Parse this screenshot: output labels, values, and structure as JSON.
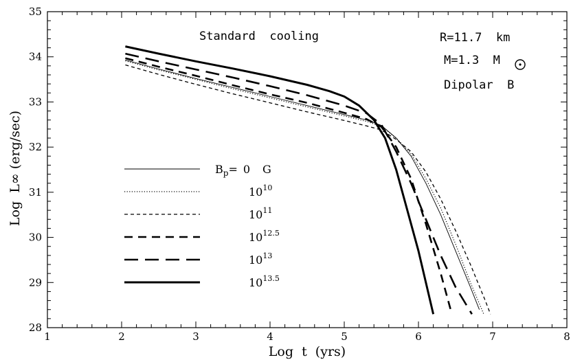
{
  "chart_data": {
    "type": "line",
    "xlabel": "Log  t  (yrs)",
    "ylabel": "Log  L∞ (erg/sec)",
    "xlim": [
      1,
      8
    ],
    "ylim": [
      28,
      35
    ],
    "x_ticks": [
      1,
      2,
      3,
      4,
      5,
      6,
      7,
      8
    ],
    "y_ticks": [
      28,
      29,
      30,
      31,
      32,
      33,
      34,
      35
    ],
    "grid": false,
    "annotations": [
      "Standard  cooling",
      "R=11.7  km",
      "M=1.3  M",
      "Dipolar  B"
    ],
    "legend_prefix": "B",
    "legend_sub": "p",
    "legend_equals": "=",
    "legend_unit": "G",
    "series": [
      {
        "name": "0",
        "base": "0",
        "exp": "",
        "style": "solid-thin",
        "x": [
          2.05,
          2.5,
          3.0,
          3.5,
          4.0,
          4.5,
          5.0,
          5.3,
          5.5,
          5.7,
          5.9,
          6.1,
          6.3,
          6.5,
          6.7,
          6.82
        ],
        "y": [
          33.93,
          33.73,
          33.52,
          33.32,
          33.12,
          32.92,
          32.72,
          32.6,
          32.48,
          32.2,
          31.8,
          31.2,
          30.5,
          29.7,
          28.9,
          28.4
        ]
      },
      {
        "name": "10^10",
        "base": "10",
        "exp": "10",
        "style": "dotted",
        "x": [
          2.05,
          2.5,
          3.0,
          3.5,
          4.0,
          4.5,
          5.0,
          5.3,
          5.5,
          5.7,
          5.9,
          6.1,
          6.3,
          6.5,
          6.7,
          6.88
        ],
        "y": [
          33.91,
          33.71,
          33.5,
          33.29,
          33.09,
          32.89,
          32.69,
          32.57,
          32.46,
          32.2,
          31.85,
          31.3,
          30.65,
          29.85,
          29.0,
          28.3
        ]
      },
      {
        "name": "10^11",
        "base": "10",
        "exp": "11",
        "style": "dashed-short",
        "x": [
          2.05,
          2.5,
          3.0,
          3.5,
          4.0,
          4.5,
          5.0,
          5.3,
          5.5,
          5.7,
          5.9,
          6.1,
          6.3,
          6.5,
          6.7,
          6.9,
          6.97
        ],
        "y": [
          33.82,
          33.61,
          33.39,
          33.18,
          32.98,
          32.78,
          32.59,
          32.47,
          32.38,
          32.17,
          31.9,
          31.45,
          30.85,
          30.15,
          29.4,
          28.6,
          28.3
        ]
      },
      {
        "name": "10^12.5",
        "base": "10",
        "exp": "12.5",
        "style": "dashed-medium",
        "x": [
          2.05,
          2.5,
          3.0,
          3.5,
          4.0,
          4.5,
          5.0,
          5.3,
          5.5,
          5.7,
          5.9,
          6.1,
          6.3,
          6.45
        ],
        "y": [
          33.97,
          33.78,
          33.58,
          33.37,
          33.17,
          32.98,
          32.76,
          32.62,
          32.45,
          32.0,
          31.3,
          30.3,
          29.2,
          28.3
        ]
      },
      {
        "name": "10^13",
        "base": "10",
        "exp": "13",
        "style": "dashed-long",
        "x": [
          2.05,
          2.5,
          3.0,
          3.5,
          4.0,
          4.5,
          5.0,
          5.3,
          5.5,
          5.7,
          5.9,
          6.1,
          6.3,
          6.5,
          6.72
        ],
        "y": [
          34.07,
          33.9,
          33.72,
          33.54,
          33.35,
          33.15,
          32.92,
          32.75,
          32.5,
          31.9,
          31.2,
          30.4,
          29.6,
          28.9,
          28.3
        ]
      },
      {
        "name": "10^13.5",
        "base": "10",
        "exp": "13.5",
        "style": "solid-thick",
        "x": [
          2.05,
          2.5,
          3.0,
          3.5,
          4.0,
          4.5,
          4.8,
          5.0,
          5.2,
          5.4,
          5.55,
          5.7,
          5.85,
          6.0,
          6.1,
          6.2
        ],
        "y": [
          34.23,
          34.07,
          33.9,
          33.74,
          33.57,
          33.38,
          33.24,
          33.12,
          32.92,
          32.6,
          32.2,
          31.5,
          30.6,
          29.7,
          29.0,
          28.3
        ]
      }
    ]
  }
}
